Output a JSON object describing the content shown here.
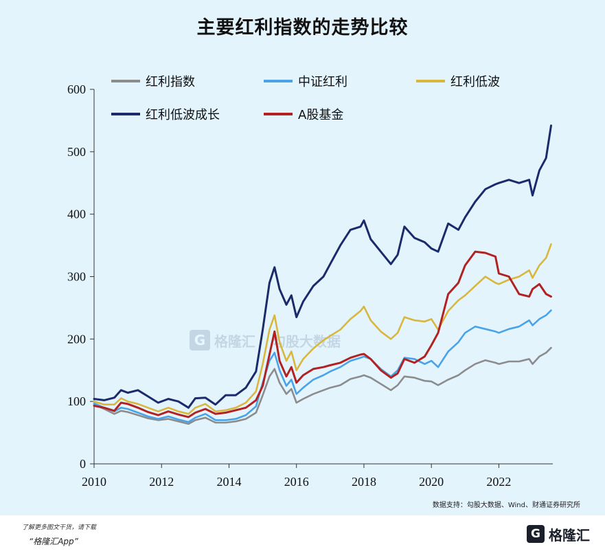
{
  "title": "主要红利指数的走势比较",
  "source": "数据支持：勾股大数据、Wind、财通证券研究所",
  "footer": {
    "line1": "了解更多图文干货，请下载",
    "line2": "“格隆汇App”",
    "brand_logo": "G",
    "brand_name": "格隆汇"
  },
  "watermark": {
    "logo": "G",
    "name": "格隆汇",
    "name2": "勾股大数据"
  },
  "colors": {
    "background": "#e3f4fd",
    "red_dividend": "#8c8c8c",
    "csi_dividend": "#4aa3e8",
    "low_vol": "#d9b73d",
    "low_vol_growth": "#1a2a6b",
    "a_fund": "#b22222"
  },
  "chart_data": {
    "type": "line",
    "title": "主要红利指数的走势比较",
    "xlabel": "",
    "ylabel": "",
    "xlim": [
      2010,
      2023.6
    ],
    "ylim": [
      0,
      600
    ],
    "xticks": [
      "2010",
      "2012",
      "2014",
      "2016",
      "2018",
      "2020",
      "2022"
    ],
    "yticks": [
      "0",
      "100",
      "200",
      "300",
      "400",
      "500",
      "600"
    ],
    "x": [
      2010.0,
      2010.3,
      2010.6,
      2010.8,
      2011.0,
      2011.3,
      2011.6,
      2011.9,
      2012.2,
      2012.5,
      2012.8,
      2013.0,
      2013.3,
      2013.6,
      2013.9,
      2014.2,
      2014.5,
      2014.8,
      2015.0,
      2015.2,
      2015.35,
      2015.5,
      2015.7,
      2015.85,
      2016.0,
      2016.2,
      2016.5,
      2016.8,
      2017.0,
      2017.3,
      2017.6,
      2017.9,
      2018.0,
      2018.2,
      2018.5,
      2018.8,
      2019.0,
      2019.2,
      2019.5,
      2019.8,
      2020.0,
      2020.2,
      2020.5,
      2020.8,
      2021.0,
      2021.3,
      2021.6,
      2021.9,
      2022.0,
      2022.3,
      2022.6,
      2022.9,
      2023.0,
      2023.2,
      2023.4,
      2023.55
    ],
    "series": [
      {
        "name": "红利指数",
        "color": "#8c8c8c",
        "values": [
          95,
          88,
          80,
          85,
          83,
          78,
          73,
          70,
          72,
          68,
          64,
          70,
          74,
          66,
          66,
          68,
          72,
          82,
          110,
          140,
          152,
          130,
          112,
          120,
          98,
          104,
          112,
          118,
          122,
          126,
          136,
          140,
          142,
          138,
          128,
          118,
          126,
          140,
          138,
          133,
          132,
          126,
          135,
          142,
          150,
          160,
          166,
          162,
          160,
          164,
          164,
          168,
          160,
          172,
          178,
          186
        ]
      },
      {
        "name": "中证红利",
        "color": "#4aa3e8",
        "values": [
          97,
          90,
          84,
          90,
          88,
          82,
          76,
          72,
          76,
          71,
          67,
          74,
          80,
          70,
          70,
          72,
          78,
          92,
          130,
          165,
          178,
          150,
          125,
          135,
          112,
          122,
          135,
          142,
          148,
          155,
          165,
          170,
          172,
          168,
          152,
          140,
          150,
          170,
          168,
          160,
          165,
          155,
          180,
          195,
          210,
          220,
          216,
          212,
          210,
          216,
          220,
          230,
          222,
          232,
          238,
          246
        ]
      },
      {
        "name": "红利低波",
        "color": "#d9b73d",
        "values": [
          100,
          95,
          95,
          105,
          100,
          96,
          90,
          84,
          90,
          84,
          80,
          90,
          96,
          84,
          86,
          90,
          98,
          116,
          160,
          215,
          238,
          195,
          165,
          180,
          150,
          168,
          185,
          198,
          205,
          215,
          232,
          245,
          252,
          230,
          212,
          200,
          210,
          235,
          230,
          228,
          232,
          215,
          245,
          262,
          270,
          285,
          300,
          290,
          288,
          295,
          300,
          310,
          298,
          318,
          330,
          352
        ]
      },
      {
        "name": "红利低波成长",
        "color": "#1a2a6b",
        "values": [
          104,
          102,
          106,
          118,
          114,
          118,
          108,
          98,
          104,
          100,
          90,
          105,
          106,
          95,
          110,
          110,
          122,
          148,
          215,
          290,
          315,
          280,
          255,
          270,
          235,
          260,
          285,
          300,
          320,
          350,
          375,
          380,
          390,
          360,
          340,
          320,
          335,
          380,
          362,
          355,
          345,
          340,
          385,
          375,
          395,
          420,
          440,
          448,
          450,
          455,
          450,
          455,
          430,
          470,
          490,
          542
        ]
      },
      {
        "name": "A股基金",
        "color": "#b22222",
        "values": [
          93,
          90,
          85,
          98,
          96,
          90,
          83,
          78,
          84,
          79,
          75,
          82,
          88,
          80,
          82,
          86,
          90,
          102,
          125,
          175,
          212,
          165,
          140,
          155,
          130,
          142,
          152,
          155,
          158,
          162,
          170,
          175,
          176,
          168,
          150,
          138,
          145,
          168,
          162,
          172,
          190,
          210,
          272,
          290,
          318,
          340,
          338,
          332,
          305,
          300,
          272,
          268,
          280,
          288,
          272,
          268
        ]
      }
    ],
    "legend": "top-left",
    "grid": false
  }
}
